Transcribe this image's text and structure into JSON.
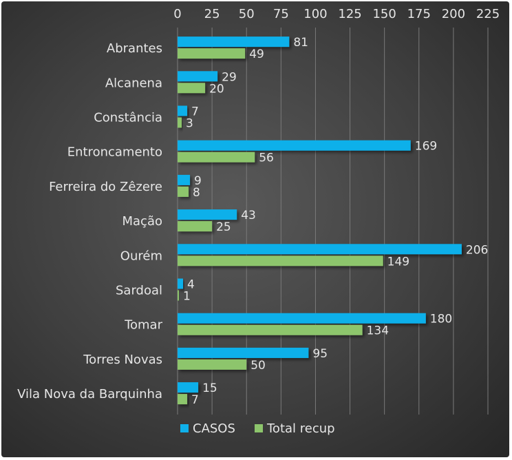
{
  "chart_data": {
    "type": "bar",
    "orientation": "horizontal",
    "categories": [
      "Abrantes",
      "Alcanena",
      "Constância",
      "Entroncamento",
      "Ferreira do Zêzere",
      "Mação",
      "Ourém",
      "Sardoal",
      "Tomar",
      "Torres Novas",
      "Vila Nova da Barquinha"
    ],
    "series": [
      {
        "name": "CASOS",
        "color": "#0fb0ea",
        "values": [
          81,
          29,
          7,
          169,
          9,
          43,
          206,
          4,
          180,
          95,
          15
        ]
      },
      {
        "name": "Total recup",
        "color": "#8dc56c",
        "values": [
          49,
          20,
          3,
          56,
          8,
          25,
          149,
          1,
          134,
          50,
          7
        ]
      }
    ],
    "xlim": [
      0,
      225
    ],
    "x_ticks": [
      "0",
      "25",
      "50",
      "75",
      "100",
      "125",
      "150",
      "175",
      "200",
      "225"
    ],
    "x_axis_position": "top",
    "grid": true,
    "legend_position": "bottom",
    "data_labels": true
  }
}
